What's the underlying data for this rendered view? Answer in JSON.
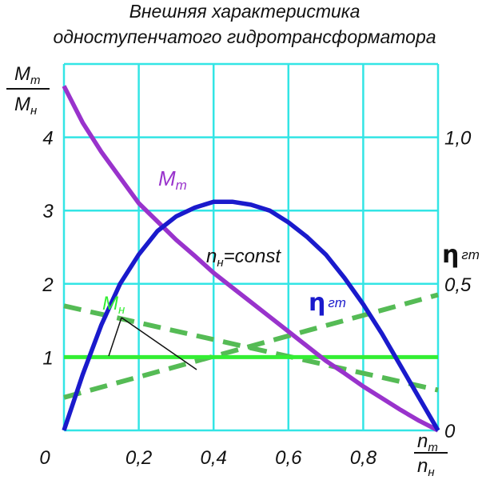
{
  "chart_data": {
    "type": "line",
    "title": [
      "Внешняя характеристика",
      "одноступенчатого гидротрансформатора"
    ],
    "x_axis": {
      "label_num": "n",
      "label_num_sub": "т",
      "label_den": "n",
      "label_den_sub": "н",
      "range": [
        0,
        1.0
      ],
      "tick_labels": [
        "0",
        "0,2",
        "0,4",
        "0,6",
        "0,8"
      ],
      "tick_values": [
        0,
        0.2,
        0.4,
        0.6,
        0.8
      ]
    },
    "y_left_axis": {
      "label_num": "M",
      "label_num_sub": "т",
      "label_den": "M",
      "label_den_sub": "н",
      "range": [
        0,
        5
      ],
      "tick_labels": [
        "1",
        "2",
        "3",
        "4"
      ],
      "tick_values": [
        1,
        2,
        3,
        4
      ]
    },
    "y_right_axis": {
      "label": "η",
      "label_sub": "гт",
      "range": [
        0,
        1.25
      ],
      "tick_labels": [
        "0",
        "0,5",
        "1,0"
      ],
      "tick_values": [
        0,
        0.5,
        1.0
      ]
    },
    "grid": true,
    "colors": {
      "grid": "#33e5e5",
      "torque_turbine": "#9933cc",
      "efficiency": "#1a1acc",
      "pump_torque": "#33ee33",
      "pump_torque_dashed": "#55bb55",
      "text": "#111111"
    },
    "series": [
      {
        "name": "Mт",
        "axis": "left",
        "style": "solid",
        "x": [
          0,
          0.05,
          0.1,
          0.15,
          0.2,
          0.25,
          0.3,
          0.35,
          0.4,
          0.45,
          0.5,
          0.55,
          0.6,
          0.65,
          0.7,
          0.75,
          0.8,
          0.85,
          0.9,
          0.95,
          1.0
        ],
        "y": [
          4.7,
          4.2,
          3.8,
          3.45,
          3.1,
          2.85,
          2.6,
          2.38,
          2.15,
          1.95,
          1.75,
          1.55,
          1.35,
          1.15,
          0.95,
          0.78,
          0.6,
          0.44,
          0.28,
          0.13,
          0
        ]
      },
      {
        "name": "ηгт",
        "axis": "right",
        "style": "solid",
        "x": [
          0,
          0.05,
          0.1,
          0.15,
          0.2,
          0.25,
          0.3,
          0.35,
          0.4,
          0.45,
          0.5,
          0.55,
          0.6,
          0.65,
          0.7,
          0.75,
          0.8,
          0.85,
          0.9,
          0.95,
          1.0
        ],
        "y": [
          0,
          0.19,
          0.36,
          0.5,
          0.6,
          0.68,
          0.73,
          0.76,
          0.78,
          0.78,
          0.77,
          0.75,
          0.71,
          0.66,
          0.6,
          0.52,
          0.43,
          0.33,
          0.22,
          0.11,
          0
        ]
      },
      {
        "name": "Mн",
        "axis": "left",
        "style": "solid",
        "x": [
          0,
          1.0
        ],
        "y": [
          1.0,
          1.0
        ]
      },
      {
        "axis": "left",
        "style": "dashed",
        "x": [
          0,
          1.0
        ],
        "y": [
          1.7,
          0.55
        ]
      },
      {
        "axis": "left",
        "style": "dashed",
        "x": [
          0,
          1.0
        ],
        "y": [
          0.45,
          1.85
        ]
      }
    ],
    "annotations": {
      "mt_label": "Mт",
      "mt_label_main": "M",
      "mt_label_sub": "т",
      "eta_label_main": "η",
      "eta_label_sub": "гт",
      "mn_label_main": "M",
      "mn_label_sub": "н",
      "condition_main": "n",
      "condition_sub": "н",
      "condition_rest": "=const"
    }
  }
}
